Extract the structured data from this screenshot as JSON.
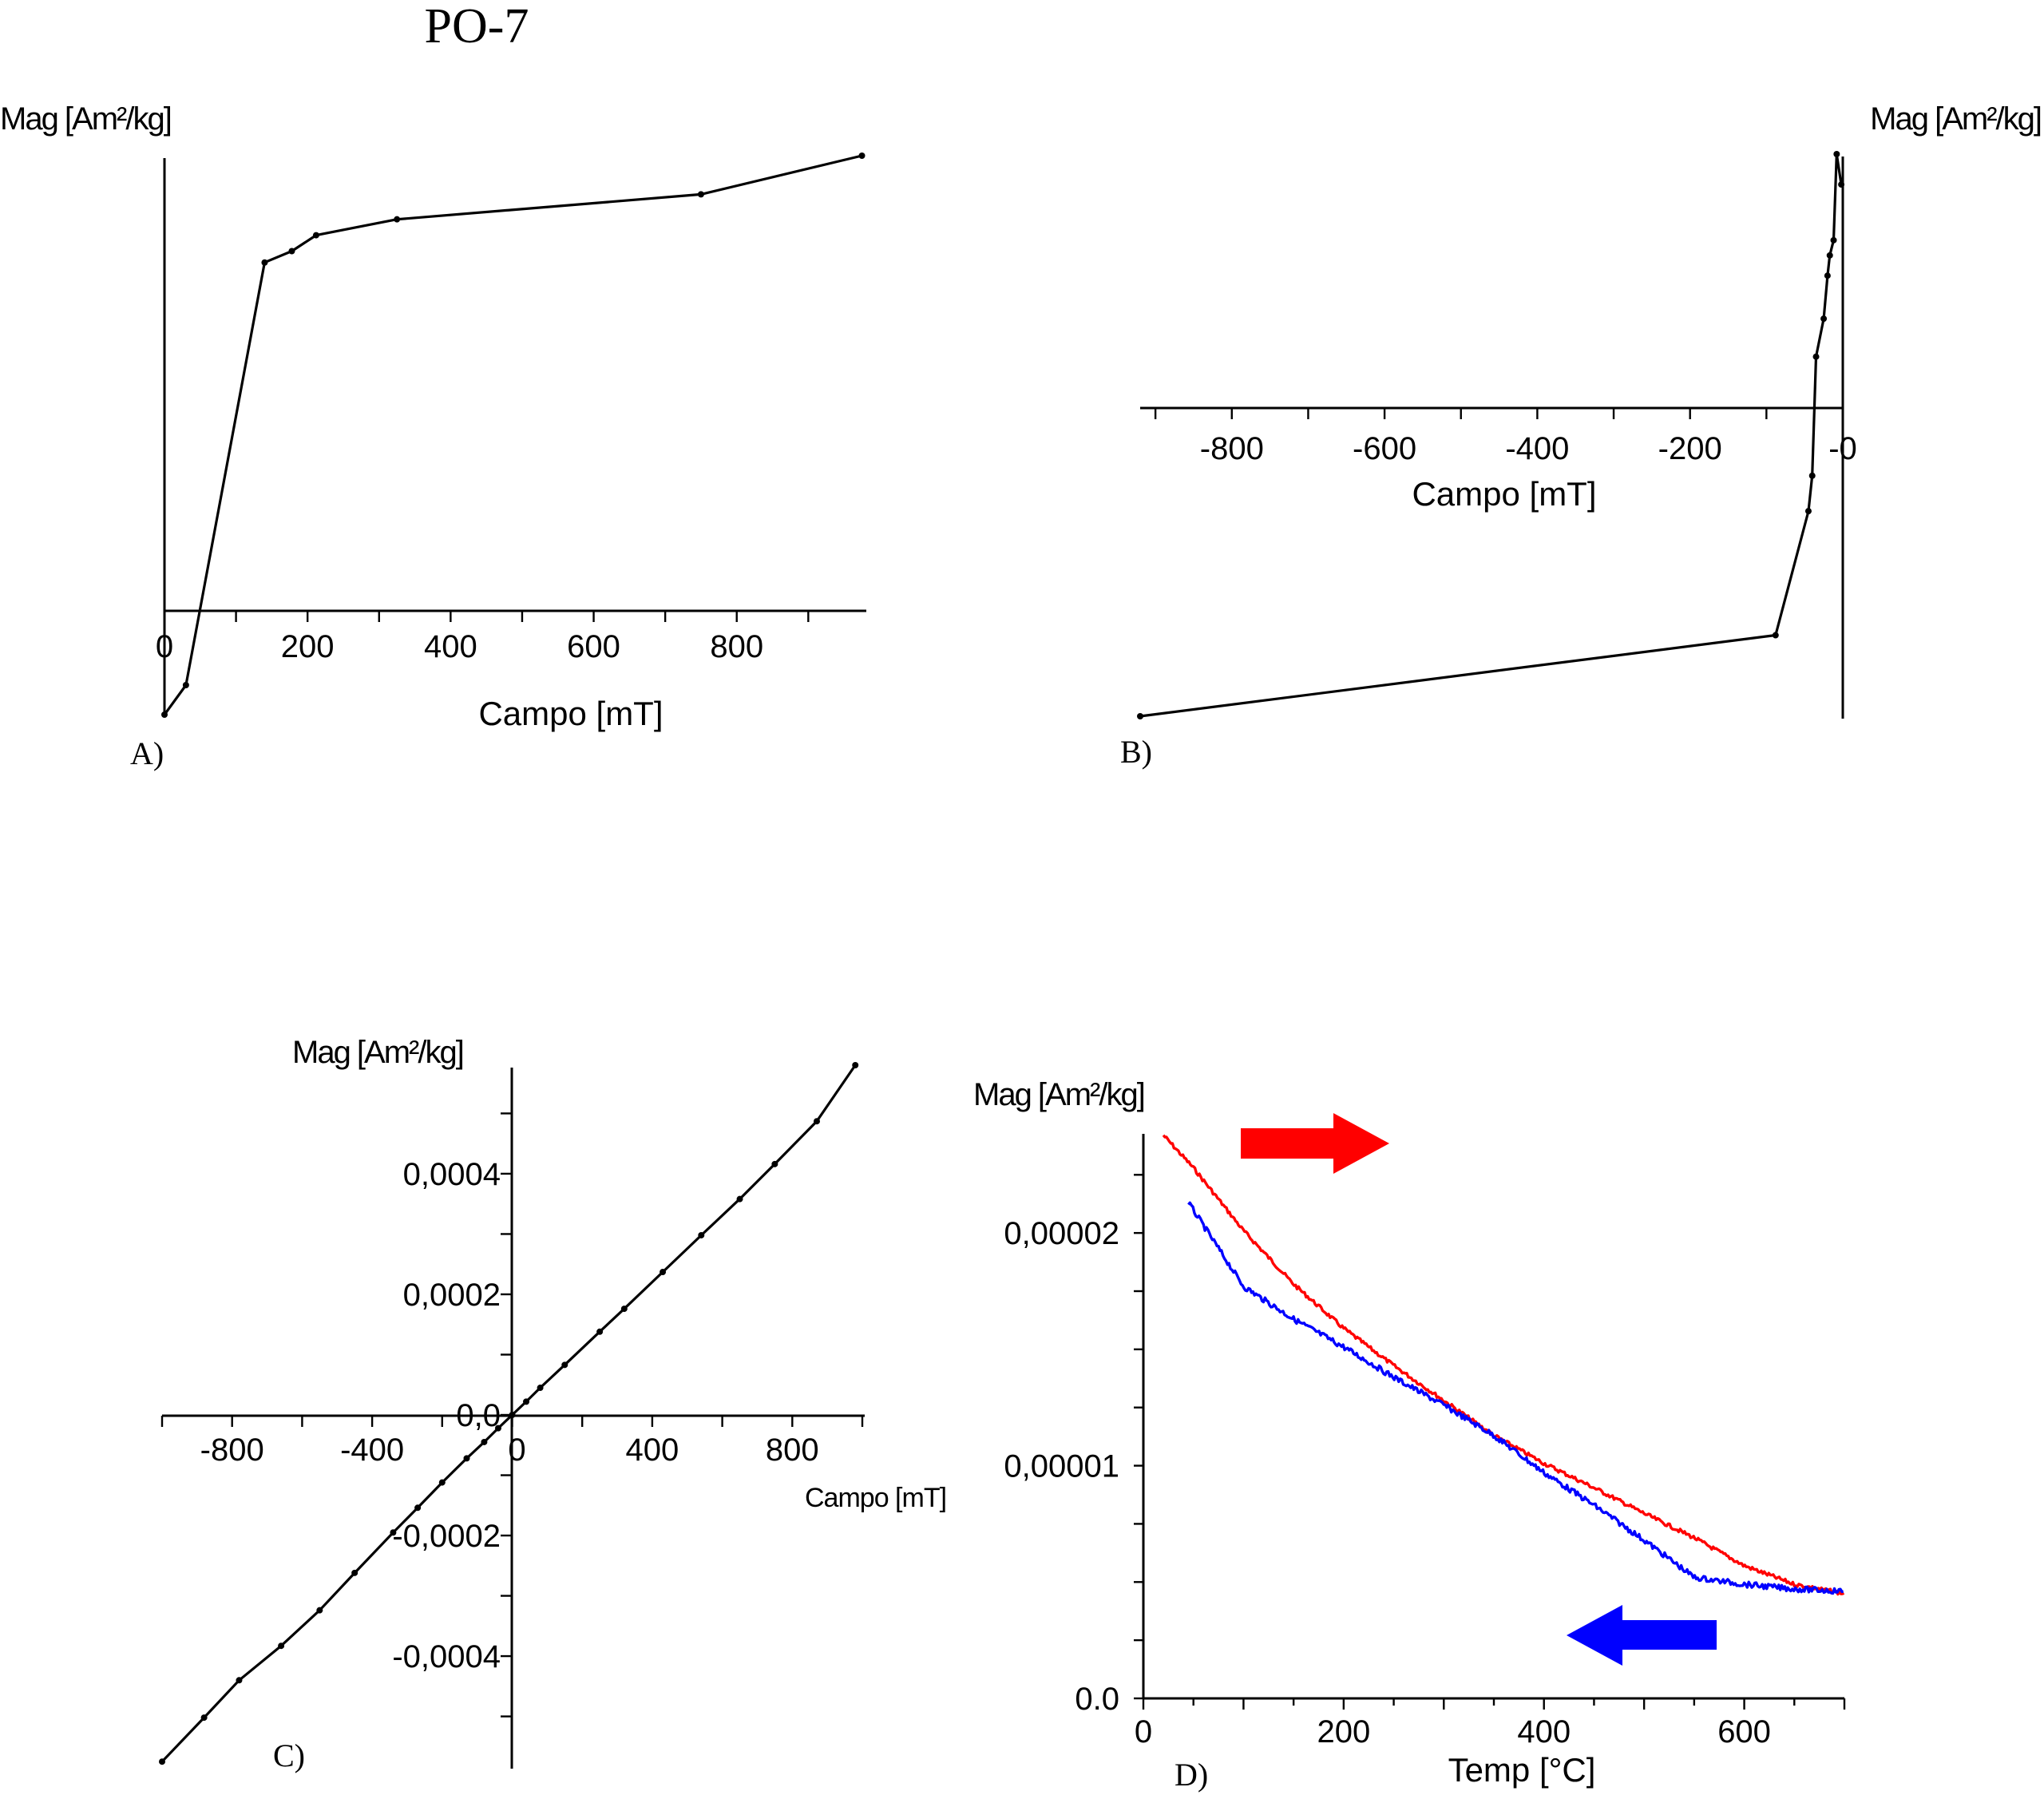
{
  "figure": {
    "title": "PO-7"
  },
  "chart_data": [
    {
      "id": "A",
      "panel_label": "A)",
      "type": "line",
      "title": "",
      "xlabel": "Campo [mT]",
      "ylabel": "Mag [Am²/kg]",
      "xlim": [
        0,
        980
      ],
      "ylim": [
        -0.23,
        1.0
      ],
      "xticks": [
        0,
        200,
        400,
        600,
        800
      ],
      "xtick_labels": [
        "0",
        "200",
        "400",
        "600",
        "800"
      ],
      "x": [
        0,
        30,
        140,
        178,
        212,
        325,
        750,
        975
      ],
      "y": [
        -0.23,
        -0.165,
        0.765,
        0.79,
        0.825,
        0.86,
        0.915,
        1.0
      ]
    },
    {
      "id": "B",
      "panel_label": "B)",
      "type": "line",
      "title": "",
      "xlabel": "Campo [mT]",
      "ylabel": "Mag [Am²/kg]",
      "xlim": [
        -920,
        0
      ],
      "ylim": [
        -1.22,
        1.0
      ],
      "xticks": [
        -800,
        -600,
        -400,
        -200,
        0
      ],
      "xtick_labels": [
        "-800",
        "-600",
        "-400",
        "-200",
        "-0"
      ],
      "x": [
        -920,
        -88,
        -45,
        -40,
        -35,
        -25,
        -20,
        -17,
        -12,
        -8,
        -2
      ],
      "y": [
        -1.22,
        -0.9,
        -0.41,
        -0.27,
        0.2,
        0.35,
        0.52,
        0.6,
        0.66,
        1.0,
        0.88
      ]
    },
    {
      "id": "C",
      "panel_label": "C)",
      "type": "line",
      "title": "",
      "xlabel": "Campo [mT]",
      "ylabel": "Mag [Am²/kg]",
      "xlim": [
        -1000,
        1000
      ],
      "ylim": [
        -0.00058,
        0.00058
      ],
      "xticks": [
        -800,
        -400,
        0,
        400,
        800
      ],
      "xtick_labels": [
        "-800",
        "-400",
        "0",
        "400",
        "800"
      ],
      "yticks": [
        -0.0004,
        -0.0002,
        0,
        0.0002,
        0.0004
      ],
      "ytick_labels": [
        "-0,0004",
        "-0,0002",
        "0,0",
        "0,0002",
        "0,0004"
      ],
      "x": [
        -1000,
        -880,
        -780,
        -660,
        -550,
        -450,
        -340,
        -270,
        -200,
        -130,
        -80,
        -40,
        0,
        40,
        80,
        150,
        250,
        320,
        430,
        540,
        650,
        750,
        870,
        980
      ],
      "y": [
        -0.000575,
        -0.000502,
        -0.00044,
        -0.000383,
        -0.000324,
        -0.000262,
        -0.000195,
        -0.000154,
        -0.000112,
        -7.2e-05,
        -4.5e-05,
        -2.2e-05,
        0,
        2.2e-05,
        4.5e-05,
        8.3e-05,
        0.000138,
        0.000176,
        0.000237,
        0.000298,
        0.000358,
        0.000416,
        0.000487,
        0.00058
      ]
    },
    {
      "id": "D",
      "panel_label": "D)",
      "type": "line",
      "title": "",
      "xlabel": "Temp [°C]",
      "ylabel": "Mag [Am²/kg]",
      "xlim": [
        0,
        700
      ],
      "ylim": [
        0,
        2.45e-05
      ],
      "xticks": [
        0,
        200,
        400,
        600
      ],
      "xtick_labels": [
        "0",
        "200",
        "400",
        "600"
      ],
      "yticks": [
        0,
        1e-05,
        2e-05
      ],
      "ytick_labels": [
        "0.0",
        "0,00001",
        "0,00002"
      ],
      "series": [
        {
          "name": "heating",
          "color": "#ff0000",
          "x": [
            20,
            50,
            100,
            150,
            200,
            250,
            300,
            350,
            400,
            450,
            500,
            550,
            600,
            650,
            700
          ],
          "y": [
            2.42e-05,
            2.28e-05,
            2.01e-05,
            1.78e-05,
            1.59e-05,
            1.43e-05,
            1.28e-05,
            1.13e-05,
            1.01e-05,
            9.05e-06,
            7.95e-06,
            6.9e-06,
            5.7e-06,
            4.9e-06,
            4.5e-06
          ]
        },
        {
          "name": "cooling",
          "color": "#0000ff",
          "x": [
            45,
            100,
            150,
            200,
            250,
            300,
            350,
            400,
            450,
            500,
            550,
            600,
            650,
            700
          ],
          "y": [
            2.13e-05,
            1.77e-05,
            1.63e-05,
            1.51e-05,
            1.38e-05,
            1.26e-05,
            1.13e-05,
            9.7e-06,
            8.3e-06,
            6.8e-06,
            5.2e-06,
            4.9e-06,
            4.7e-06,
            4.6e-06
          ]
        }
      ],
      "arrows": [
        {
          "name": "heating-arrow",
          "color": "#ff0000",
          "direction": "right"
        },
        {
          "name": "cooling-arrow",
          "color": "#0000ff",
          "direction": "left"
        }
      ]
    }
  ]
}
